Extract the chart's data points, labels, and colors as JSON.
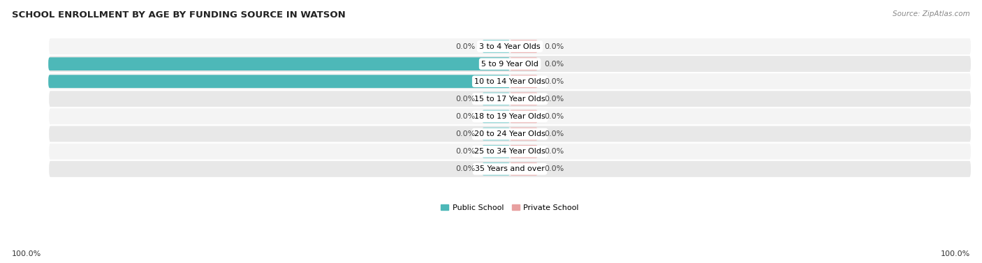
{
  "title": "SCHOOL ENROLLMENT BY AGE BY FUNDING SOURCE IN WATSON",
  "source_text": "Source: ZipAtlas.com",
  "categories": [
    "3 to 4 Year Olds",
    "5 to 9 Year Old",
    "10 to 14 Year Olds",
    "15 to 17 Year Olds",
    "18 to 19 Year Olds",
    "20 to 24 Year Olds",
    "25 to 34 Year Olds",
    "35 Years and over"
  ],
  "public_pct": [
    0.0,
    100.0,
    100.0,
    0.0,
    0.0,
    0.0,
    0.0,
    0.0
  ],
  "private_pct": [
    0.0,
    0.0,
    0.0,
    0.0,
    0.0,
    0.0,
    0.0,
    0.0
  ],
  "public_color": "#4db8b8",
  "private_color": "#e8a0a0",
  "stub_public_color": "#82d0d0",
  "stub_private_color": "#ebb0b0",
  "row_bg_light": "#f4f4f4",
  "row_bg_dark": "#e8e8e8",
  "label_font_size": 8,
  "title_font_size": 9.5,
  "source_font_size": 7.5,
  "axis_label_font_size": 8,
  "bottom_left_label": "100.0%",
  "bottom_right_label": "100.0%",
  "stub_size": 6.0,
  "max_pct": 100.0
}
